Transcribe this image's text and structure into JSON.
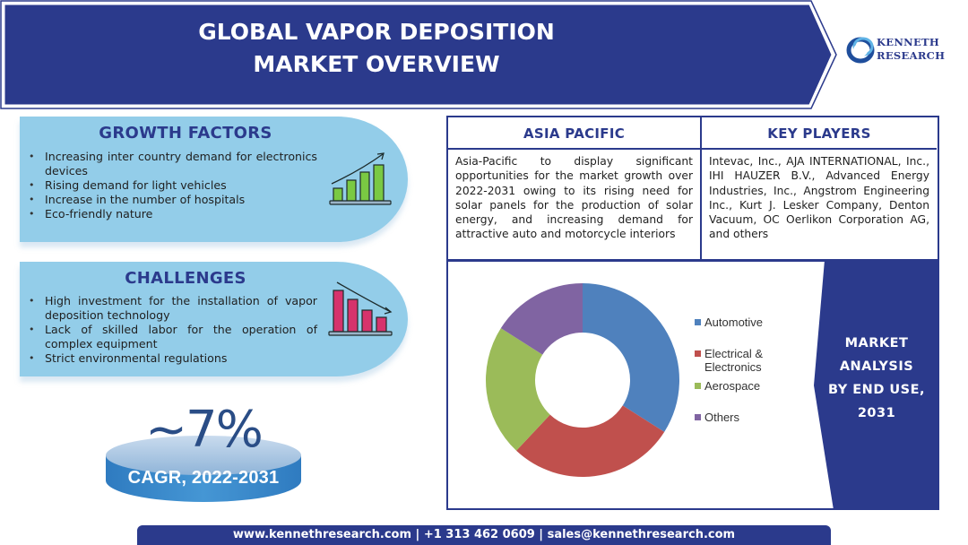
{
  "header": {
    "title_line1": "GLOBAL VAPOR DEPOSITION",
    "title_line2": "MARKET OVERVIEW",
    "banner_color": "#2b3a8c"
  },
  "logo": {
    "line1": "KENNETH",
    "line2": "RESEARCH",
    "icon": "swirl-ring-icon"
  },
  "growth_factors": {
    "title": "GROWTH FACTORS",
    "items": [
      "Increasing inter country demand for electronics devices",
      "Rising demand for light vehicles",
      "Increase in the number of hospitals",
      "Eco-friendly nature"
    ],
    "icon": "rising-bar-chart-icon",
    "icon_color": "#7ac943"
  },
  "challenges": {
    "title": "CHALLENGES",
    "items": [
      "High investment for the installation of vapor deposition technology",
      "Lack of skilled labor for the operation of complex equipment",
      "Strict environmental regulations"
    ],
    "icon": "falling-bar-chart-icon",
    "icon_color": "#d6336c"
  },
  "cagr": {
    "value": "~7%",
    "label": "CAGR, 2022-2031"
  },
  "asia_pacific": {
    "title": "ASIA PACIFIC",
    "text": "Asia-Pacific to display significant opportunities for the market growth over 2022-2031 owing to its rising need for solar panels for the production of solar energy, and increasing demand for attractive auto and motorcycle interiors"
  },
  "key_players": {
    "title": "KEY PLAYERS",
    "text": "Intevac, Inc., AJA INTERNATIONAL, Inc., IHI HAUZER B.V., Advanced Energy Industries, Inc., Angstrom Engineering Inc., Kurt J. Lesker Company, Denton Vacuum, OC Oerlikon Corporation AG, and others"
  },
  "analysis": {
    "line1": "MARKET",
    "line2": "ANALYSIS",
    "line3": "BY END USE,",
    "line4": "2031"
  },
  "chart_data": {
    "type": "pie",
    "subtype": "donut",
    "title": "MARKET ANALYSIS BY END USE, 2031",
    "categories": [
      "Automotive",
      "Electrical & Electronics",
      "Aerospace",
      "Others"
    ],
    "values": [
      34,
      28,
      22,
      16
    ],
    "colors": [
      "#4f81bd",
      "#c0504d",
      "#9bbb59",
      "#8064a2"
    ],
    "legend_position": "right",
    "data_labels": false
  },
  "legend": [
    {
      "label": "Automotive",
      "color": "#4f81bd"
    },
    {
      "label": "Electrical &",
      "label2": "Electronics",
      "color": "#c0504d"
    },
    {
      "label": "Aerospace",
      "color": "#9bbb59"
    },
    {
      "label": "Others",
      "color": "#8064a2"
    }
  ],
  "footer": {
    "text": "www.kennethresearch.com | +1 313 462 0609 | sales@kennethresearch.com"
  }
}
